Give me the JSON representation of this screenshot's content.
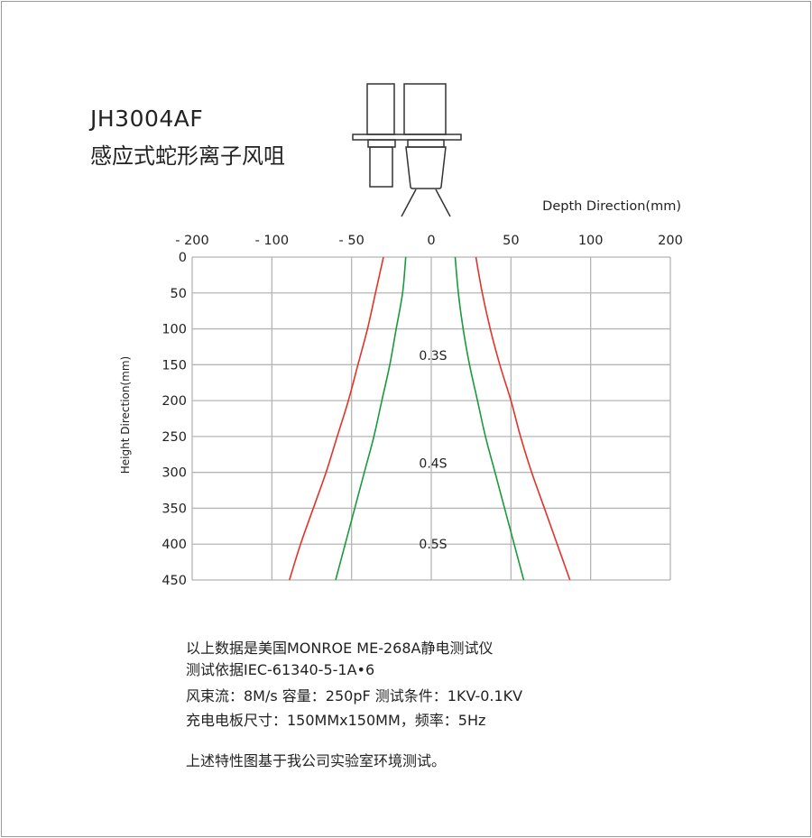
{
  "header": {
    "model": "JH3004AF",
    "product_name": "感应式蛇形离子风咀"
  },
  "chart_data": {
    "type": "line",
    "xlabel": "Depth Direction(mm)",
    "ylabel": "Height Direction(mm)",
    "x_ticks": [
      -200,
      -100,
      -50,
      0,
      50,
      100,
      200
    ],
    "x_tick_labels": [
      "- 200",
      "- 100",
      "- 50",
      "0",
      "50",
      "100",
      "200"
    ],
    "y_ticks": [
      0,
      50,
      100,
      150,
      200,
      250,
      300,
      350,
      400,
      450
    ],
    "y_tick_labels": [
      "0",
      "50",
      "100",
      "150",
      "200",
      "250",
      "300",
      "350",
      "400",
      "450"
    ],
    "ylim": [
      0,
      450
    ],
    "y_inverted": true,
    "x_axis_position": "top",
    "x_scale": "non-uniform (tick labels equally spaced)",
    "grid": true,
    "series": [
      {
        "color": "#e0342a",
        "points": [
          [
            -30,
            0
          ],
          [
            -35,
            50
          ],
          [
            -40,
            100
          ],
          [
            -46,
            150
          ],
          [
            -52,
            200
          ],
          [
            -59,
            250
          ],
          [
            -66,
            300
          ],
          [
            -74,
            350
          ],
          [
            -82,
            400
          ],
          [
            -89,
            450
          ]
        ]
      },
      {
        "color": "#e0342a",
        "points": [
          [
            28,
            0
          ],
          [
            32,
            50
          ],
          [
            37,
            100
          ],
          [
            43,
            150
          ],
          [
            50,
            200
          ],
          [
            56,
            250
          ],
          [
            63,
            300
          ],
          [
            71,
            350
          ],
          [
            79,
            400
          ],
          [
            87,
            450
          ]
        ]
      },
      {
        "color": "#1a9a3c",
        "points": [
          [
            -16,
            0
          ],
          [
            -18,
            50
          ],
          [
            -22,
            100
          ],
          [
            -26,
            150
          ],
          [
            -31,
            200
          ],
          [
            -36,
            250
          ],
          [
            -42,
            300
          ],
          [
            -48,
            350
          ],
          [
            -54,
            400
          ],
          [
            -60,
            450
          ]
        ]
      },
      {
        "color": "#1a9a3c",
        "points": [
          [
            15,
            0
          ],
          [
            17,
            50
          ],
          [
            20,
            100
          ],
          [
            24,
            150
          ],
          [
            29,
            200
          ],
          [
            34,
            250
          ],
          [
            40,
            300
          ],
          [
            46,
            350
          ],
          [
            52,
            400
          ],
          [
            58,
            450
          ]
        ]
      }
    ],
    "annotations": [
      {
        "text": "0.3S",
        "x": 0,
        "y": 137
      },
      {
        "text": "0.4S",
        "x": 0,
        "y": 287
      },
      {
        "text": "0.5S",
        "x": 0,
        "y": 400
      }
    ]
  },
  "notes": [
    "以上数据是美国MONROE ME-268A静电测试仪",
    "测试依据IEC-61340-5-1A•6",
    "风束流：8M/s 容量：250pF 测试条件：1KV-0.1KV",
    "充电电板尺寸：150MMx150MM，频率：5Hz",
    "上述特性图基于我公司实验室环境测试。"
  ]
}
